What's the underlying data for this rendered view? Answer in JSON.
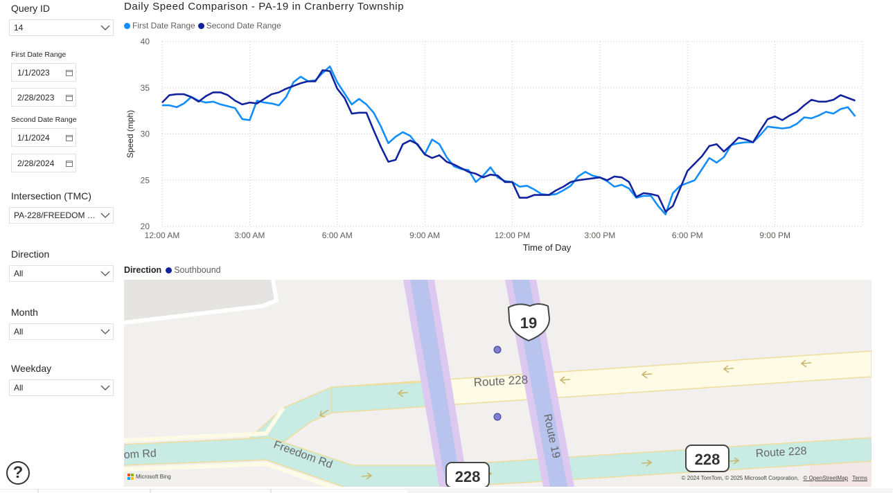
{
  "filters": {
    "query_id": {
      "label": "Query ID",
      "value": "14"
    },
    "first_range": {
      "label": "First Date Range",
      "start": "1/1/2023",
      "end": "2/28/2023"
    },
    "second_range": {
      "label": "Second Date Range",
      "start": "1/1/2024",
      "end": "2/28/2024"
    },
    "intersection": {
      "label": "Intersection (TMC)",
      "value": "PA-228/FREEDOM R..."
    },
    "direction": {
      "label": "Direction",
      "value": "All"
    },
    "month": {
      "label": "Month",
      "value": "All"
    },
    "weekday": {
      "label": "Weekday",
      "value": "All"
    }
  },
  "help": {
    "icon": "help-circle-icon",
    "glyph": "?"
  },
  "chart": {
    "title": "Daily Speed Comparison - PA-19 in Cranberry Township",
    "legend": [
      "First Date Range",
      "Second Date Range"
    ]
  },
  "chart_data": {
    "type": "line",
    "xlabel": "Time of Day",
    "ylabel": "Speed (mph)",
    "ylim": [
      20,
      40
    ],
    "yticks": [
      "20",
      "25",
      "30",
      "35",
      "40"
    ],
    "xticks": [
      "12:00 AM",
      "3:00 AM",
      "6:00 AM",
      "9:00 AM",
      "12:00 PM",
      "3:00 PM",
      "6:00 PM",
      "9:00 PM"
    ],
    "xtick_hours": [
      0,
      3,
      6,
      9,
      12,
      15,
      18,
      21
    ],
    "x_hours": [
      0,
      0.25,
      0.5,
      0.75,
      1,
      1.25,
      1.5,
      1.75,
      2,
      2.25,
      2.5,
      2.75,
      3,
      3.25,
      3.5,
      3.75,
      4,
      4.25,
      4.5,
      4.75,
      5,
      5.25,
      5.5,
      5.75,
      6,
      6.25,
      6.5,
      6.75,
      7,
      7.25,
      7.5,
      7.75,
      8,
      8.25,
      8.5,
      8.75,
      9,
      9.25,
      9.5,
      9.75,
      10,
      10.25,
      10.5,
      10.75,
      11,
      11.25,
      11.5,
      11.75,
      12,
      12.25,
      12.5,
      12.75,
      13,
      13.25,
      13.5,
      13.75,
      14,
      14.25,
      14.5,
      14.75,
      15,
      15.25,
      15.5,
      15.75,
      16,
      16.25,
      16.5,
      16.75,
      17,
      17.25,
      17.5,
      17.75,
      18,
      18.25,
      18.5,
      18.75,
      19,
      19.25,
      19.5,
      19.75,
      20,
      20.25,
      20.5,
      20.75,
      21,
      21.25,
      21.5,
      21.75,
      22,
      22.25,
      22.5,
      22.75,
      23,
      23.25,
      23.5,
      23.75
    ],
    "grid": true,
    "colors": {
      "First Date Range": "#118dff",
      "Second Date Range": "#12239e"
    },
    "series": [
      {
        "name": "First Date Range",
        "values": [
          33.1,
          33.1,
          32.9,
          33.3,
          34.0,
          33.6,
          33.4,
          33.5,
          33.2,
          33.0,
          32.8,
          31.6,
          31.5,
          33.6,
          33.4,
          33.3,
          33.1,
          34.0,
          35.6,
          36.2,
          35.7,
          35.8,
          36.6,
          37.3,
          35.6,
          34.4,
          33.2,
          33.8,
          33.2,
          32.3,
          30.8,
          29.0,
          29.7,
          30.2,
          29.8,
          28.8,
          27.8,
          29.4,
          28.9,
          27.5,
          26.5,
          26.2,
          26.1,
          24.8,
          25.5,
          26.4,
          25.3,
          24.9,
          24.8,
          24.3,
          24.4,
          24.0,
          23.5,
          23.4,
          23.5,
          23.9,
          24.4,
          25.4,
          25.9,
          25.5,
          25.3,
          24.9,
          24.3,
          24.5,
          24.1,
          23.1,
          23.3,
          23.3,
          22.2,
          21.3,
          23.6,
          24.4,
          24.7,
          25.0,
          26.2,
          27.4,
          26.9,
          27.5,
          28.8,
          29.0,
          29.1,
          29.1,
          29.9,
          30.8,
          30.7,
          30.6,
          30.7,
          31.1,
          31.8,
          31.7,
          32.0,
          32.4,
          32.2,
          32.7,
          32.9,
          31.9
        ]
      },
      {
        "name": "Second Date Range",
        "values": [
          33.4,
          34.2,
          34.3,
          34.3,
          34.0,
          33.5,
          34.1,
          34.5,
          34.5,
          34.2,
          33.6,
          33.2,
          33.4,
          33.3,
          33.8,
          34.3,
          34.5,
          34.9,
          35.2,
          35.5,
          35.7,
          35.7,
          36.9,
          36.8,
          34.9,
          33.9,
          32.2,
          32.3,
          32.3,
          30.4,
          28.6,
          27.0,
          27.2,
          28.9,
          29.3,
          28.9,
          27.8,
          27.4,
          27.7,
          27.0,
          26.7,
          26.3,
          25.9,
          25.7,
          25.3,
          25.6,
          25.5,
          24.8,
          24.8,
          23.1,
          23.1,
          23.4,
          23.4,
          23.4,
          23.9,
          24.3,
          24.8,
          25.0,
          25.1,
          25.2,
          25.3,
          25.0,
          25.4,
          25.3,
          24.8,
          23.2,
          23.6,
          23.5,
          23.3,
          21.6,
          22.2,
          24.1,
          26.0,
          26.8,
          27.6,
          28.7,
          28.9,
          28.1,
          28.8,
          29.6,
          29.4,
          29.1,
          30.4,
          31.6,
          31.9,
          31.5,
          32.0,
          32.4,
          33.1,
          33.7,
          33.5,
          33.5,
          33.7,
          34.2,
          33.9,
          33.6
        ]
      }
    ]
  },
  "map": {
    "legend_title": "Direction",
    "legend_item": "Southbound",
    "legend_color": "#12239e",
    "labels": {
      "route228_top": "Route 228",
      "route19": "Route 19",
      "freedom_rd": "Freedom Rd",
      "freedom_rd_left": "om Rd",
      "route228_right": "Route 228"
    },
    "shields": {
      "us19": "19",
      "pa228_center": "228",
      "pa228_right": "228"
    },
    "attribution": "© 2024 TomTom, © 2025 Microsoft Corporation,",
    "osm_link": "© OpenStreetMap",
    "terms_link": "Terms",
    "logo_text": "Microsoft Bing",
    "point_color": "#7f7fd1"
  }
}
